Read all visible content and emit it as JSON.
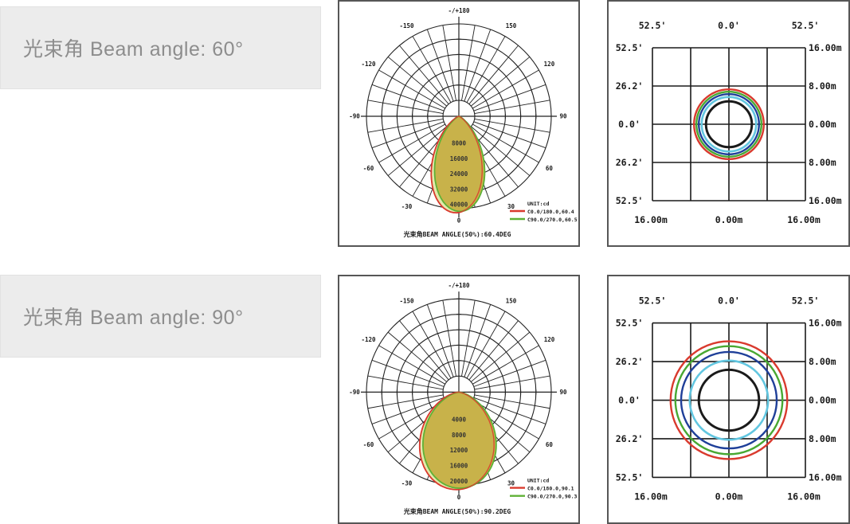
{
  "rows": [
    {
      "label": "光束角 Beam angle: 60°",
      "polar": {
        "angle_labels": [
          {
            "a": 180,
            "t": "-/+180"
          },
          {
            "a": -150,
            "t": "-150"
          },
          {
            "a": 150,
            "t": "150"
          },
          {
            "a": -120,
            "t": "-120"
          },
          {
            "a": 120,
            "t": "120"
          },
          {
            "a": -90,
            "t": "-90"
          },
          {
            "a": 90,
            "t": "90"
          },
          {
            "a": -60,
            "t": "-60"
          },
          {
            "a": 60,
            "t": "60"
          },
          {
            "a": -30,
            "t": "-30"
          },
          {
            "a": 30,
            "t": "30"
          },
          {
            "a": 0,
            "t": "0"
          }
        ],
        "ring_values": [
          "8000",
          "16000",
          "24000",
          "32000",
          "40000"
        ],
        "unit_label": "UNIT:cd",
        "legend": [
          {
            "color": "#d93a2e",
            "label": "C0.0/180.0,60.4"
          },
          {
            "color": "#5fb136",
            "label": "C90.0/270.0,60.5"
          }
        ],
        "caption": "光束角BEAM ANGLE(50%):60.4DEG",
        "beam": {
          "n": 4.8,
          "scale": 1.03
        }
      },
      "grid": {
        "col_labels_top": [
          "52.5'",
          "0.0'",
          "52.5'"
        ],
        "row_labels_left": [
          "52.5'",
          "26.2'",
          "0.0'",
          "26.2'",
          "52.5'"
        ],
        "row_labels_right": [
          "16.00m",
          "8.00m",
          "0.00m",
          "8.00m",
          "16.00m"
        ],
        "col_labels_bottom": [
          "16.00m",
          "0.00m",
          "16.00m"
        ],
        "circles": [
          {
            "r_m": 7.3,
            "color": "#d93a2e",
            "w": 2.4
          },
          {
            "r_m": 6.8,
            "color": "#48a832",
            "w": 2.4
          },
          {
            "r_m": 6.3,
            "color": "#1f3f99",
            "w": 2.4
          },
          {
            "r_m": 5.7,
            "color": "#62c6e0",
            "w": 2.6
          },
          {
            "r_m": 4.8,
            "color": "#1a1a1a",
            "w": 3
          }
        ]
      }
    },
    {
      "label": "光束角 Beam angle: 90°",
      "polar": {
        "angle_labels": [
          {
            "a": 180,
            "t": "-/+180"
          },
          {
            "a": -150,
            "t": "-150"
          },
          {
            "a": 150,
            "t": "150"
          },
          {
            "a": -120,
            "t": "-120"
          },
          {
            "a": 120,
            "t": "120"
          },
          {
            "a": -90,
            "t": "-90"
          },
          {
            "a": 90,
            "t": "90"
          },
          {
            "a": -60,
            "t": "-60"
          },
          {
            "a": 60,
            "t": "60"
          },
          {
            "a": -30,
            "t": "-30"
          },
          {
            "a": 30,
            "t": "30"
          },
          {
            "a": 0,
            "t": "0"
          }
        ],
        "ring_values": [
          "4000",
          "8000",
          "12000",
          "16000",
          "20000"
        ],
        "unit_label": "UNIT:cd",
        "legend": [
          {
            "color": "#d93a2e",
            "label": "C0.0/180.0,90.1"
          },
          {
            "color": "#5fb136",
            "label": "C90.0/270.0,90.3"
          }
        ],
        "caption": "光束角BEAM ANGLE(50%):90.2DEG",
        "beam": {
          "n": 2.0,
          "scale": 1.03
        }
      },
      "grid": {
        "col_labels_top": [
          "52.5'",
          "0.0'",
          "52.5'"
        ],
        "row_labels_left": [
          "52.5'",
          "26.2'",
          "0.0'",
          "26.2'",
          "52.5'"
        ],
        "row_labels_right": [
          "16.00m",
          "8.00m",
          "0.00m",
          "8.00m",
          "16.00m"
        ],
        "col_labels_bottom": [
          "16.00m",
          "0.00m",
          "16.00m"
        ],
        "circles": [
          {
            "r_m": 12.2,
            "color": "#d93a2e",
            "w": 2.4
          },
          {
            "r_m": 11.2,
            "color": "#48a832",
            "w": 2.4
          },
          {
            "r_m": 10.0,
            "color": "#1f3f99",
            "w": 2.4
          },
          {
            "r_m": 8.2,
            "color": "#62c6e0",
            "w": 2.6
          },
          {
            "r_m": 6.3,
            "color": "#1a1a1a",
            "w": 3
          }
        ]
      }
    }
  ],
  "colors": {
    "beam_fill": "#c8b24a",
    "beam_fill_pale": "#e4e8ab",
    "curve_c0": "#d93a2e",
    "curve_c90": "#5fb136",
    "grid_line": "#1a1a1a",
    "label_gray": "#8d8d8d",
    "label_box_bg": "#ececec"
  },
  "chart_data": [
    {
      "type": "line",
      "subtype": "polar-intensity-distribution",
      "title": "光束角BEAM ANGLE(50%):60.4DEG",
      "radial_unit": "cd",
      "radial_ticks": [
        8000,
        16000,
        24000,
        32000,
        40000
      ],
      "angle_ticks_deg": [
        -180,
        -150,
        -120,
        -90,
        -60,
        -30,
        0,
        30,
        60,
        90,
        120,
        150,
        180
      ],
      "imax_cd": 41000,
      "series": [
        {
          "name": "C0.0/180.0",
          "beam_angle_50_deg": 60.4,
          "color": "#d93a2e"
        },
        {
          "name": "C90.0/270.0",
          "beam_angle_50_deg": 60.5,
          "color": "#5fb136"
        }
      ],
      "legend_position": "bottom-right",
      "grid": true
    },
    {
      "type": "line",
      "subtype": "isolux-spot-diagram",
      "title": "Beam angle 60° spot",
      "x_axis_bottom": {
        "labels": [
          "16.00m",
          "0.00m",
          "16.00m"
        ]
      },
      "x_axis_top": {
        "labels": [
          "52.5'",
          "0.0'",
          "52.5'"
        ],
        "unit": "deg"
      },
      "y_axis_left": {
        "labels": [
          "52.5'",
          "26.2'",
          "0.0'",
          "26.2'",
          "52.5'"
        ]
      },
      "y_axis_right": {
        "labels": [
          "16.00m",
          "8.00m",
          "0.00m",
          "8.00m",
          "16.00m"
        ]
      },
      "xlim_m": [
        -16,
        16
      ],
      "ylim_m": [
        -16,
        16
      ],
      "circle_radii_m": [
        7.3,
        6.8,
        6.3,
        5.7,
        4.8
      ],
      "circle_colors": [
        "#d93a2e",
        "#48a832",
        "#1f3f99",
        "#62c6e0",
        "#1a1a1a"
      ],
      "grid": true
    },
    {
      "type": "line",
      "subtype": "polar-intensity-distribution",
      "title": "光束角BEAM ANGLE(50%):90.2DEG",
      "radial_unit": "cd",
      "radial_ticks": [
        4000,
        8000,
        12000,
        16000,
        20000
      ],
      "angle_ticks_deg": [
        -180,
        -150,
        -120,
        -90,
        -60,
        -30,
        0,
        30,
        60,
        90,
        120,
        150,
        180
      ],
      "imax_cd": 20600,
      "series": [
        {
          "name": "C0.0/180.0",
          "beam_angle_50_deg": 90.1,
          "color": "#d93a2e"
        },
        {
          "name": "C90.0/270.0",
          "beam_angle_50_deg": 90.3,
          "color": "#5fb136"
        }
      ],
      "legend_position": "bottom-right",
      "grid": true
    },
    {
      "type": "line",
      "subtype": "isolux-spot-diagram",
      "title": "Beam angle 90° spot",
      "x_axis_bottom": {
        "labels": [
          "16.00m",
          "0.00m",
          "16.00m"
        ]
      },
      "x_axis_top": {
        "labels": [
          "52.5'",
          "0.0'",
          "52.5'"
        ],
        "unit": "deg"
      },
      "y_axis_left": {
        "labels": [
          "52.5'",
          "26.2'",
          "0.0'",
          "26.2'",
          "52.5'"
        ]
      },
      "y_axis_right": {
        "labels": [
          "16.00m",
          "8.00m",
          "0.00m",
          "8.00m",
          "16.00m"
        ]
      },
      "xlim_m": [
        -16,
        16
      ],
      "ylim_m": [
        -16,
        16
      ],
      "circle_radii_m": [
        12.2,
        11.2,
        10.0,
        8.2,
        6.3
      ],
      "circle_colors": [
        "#d93a2e",
        "#48a832",
        "#1f3f99",
        "#62c6e0",
        "#1a1a1a"
      ],
      "grid": true
    }
  ]
}
